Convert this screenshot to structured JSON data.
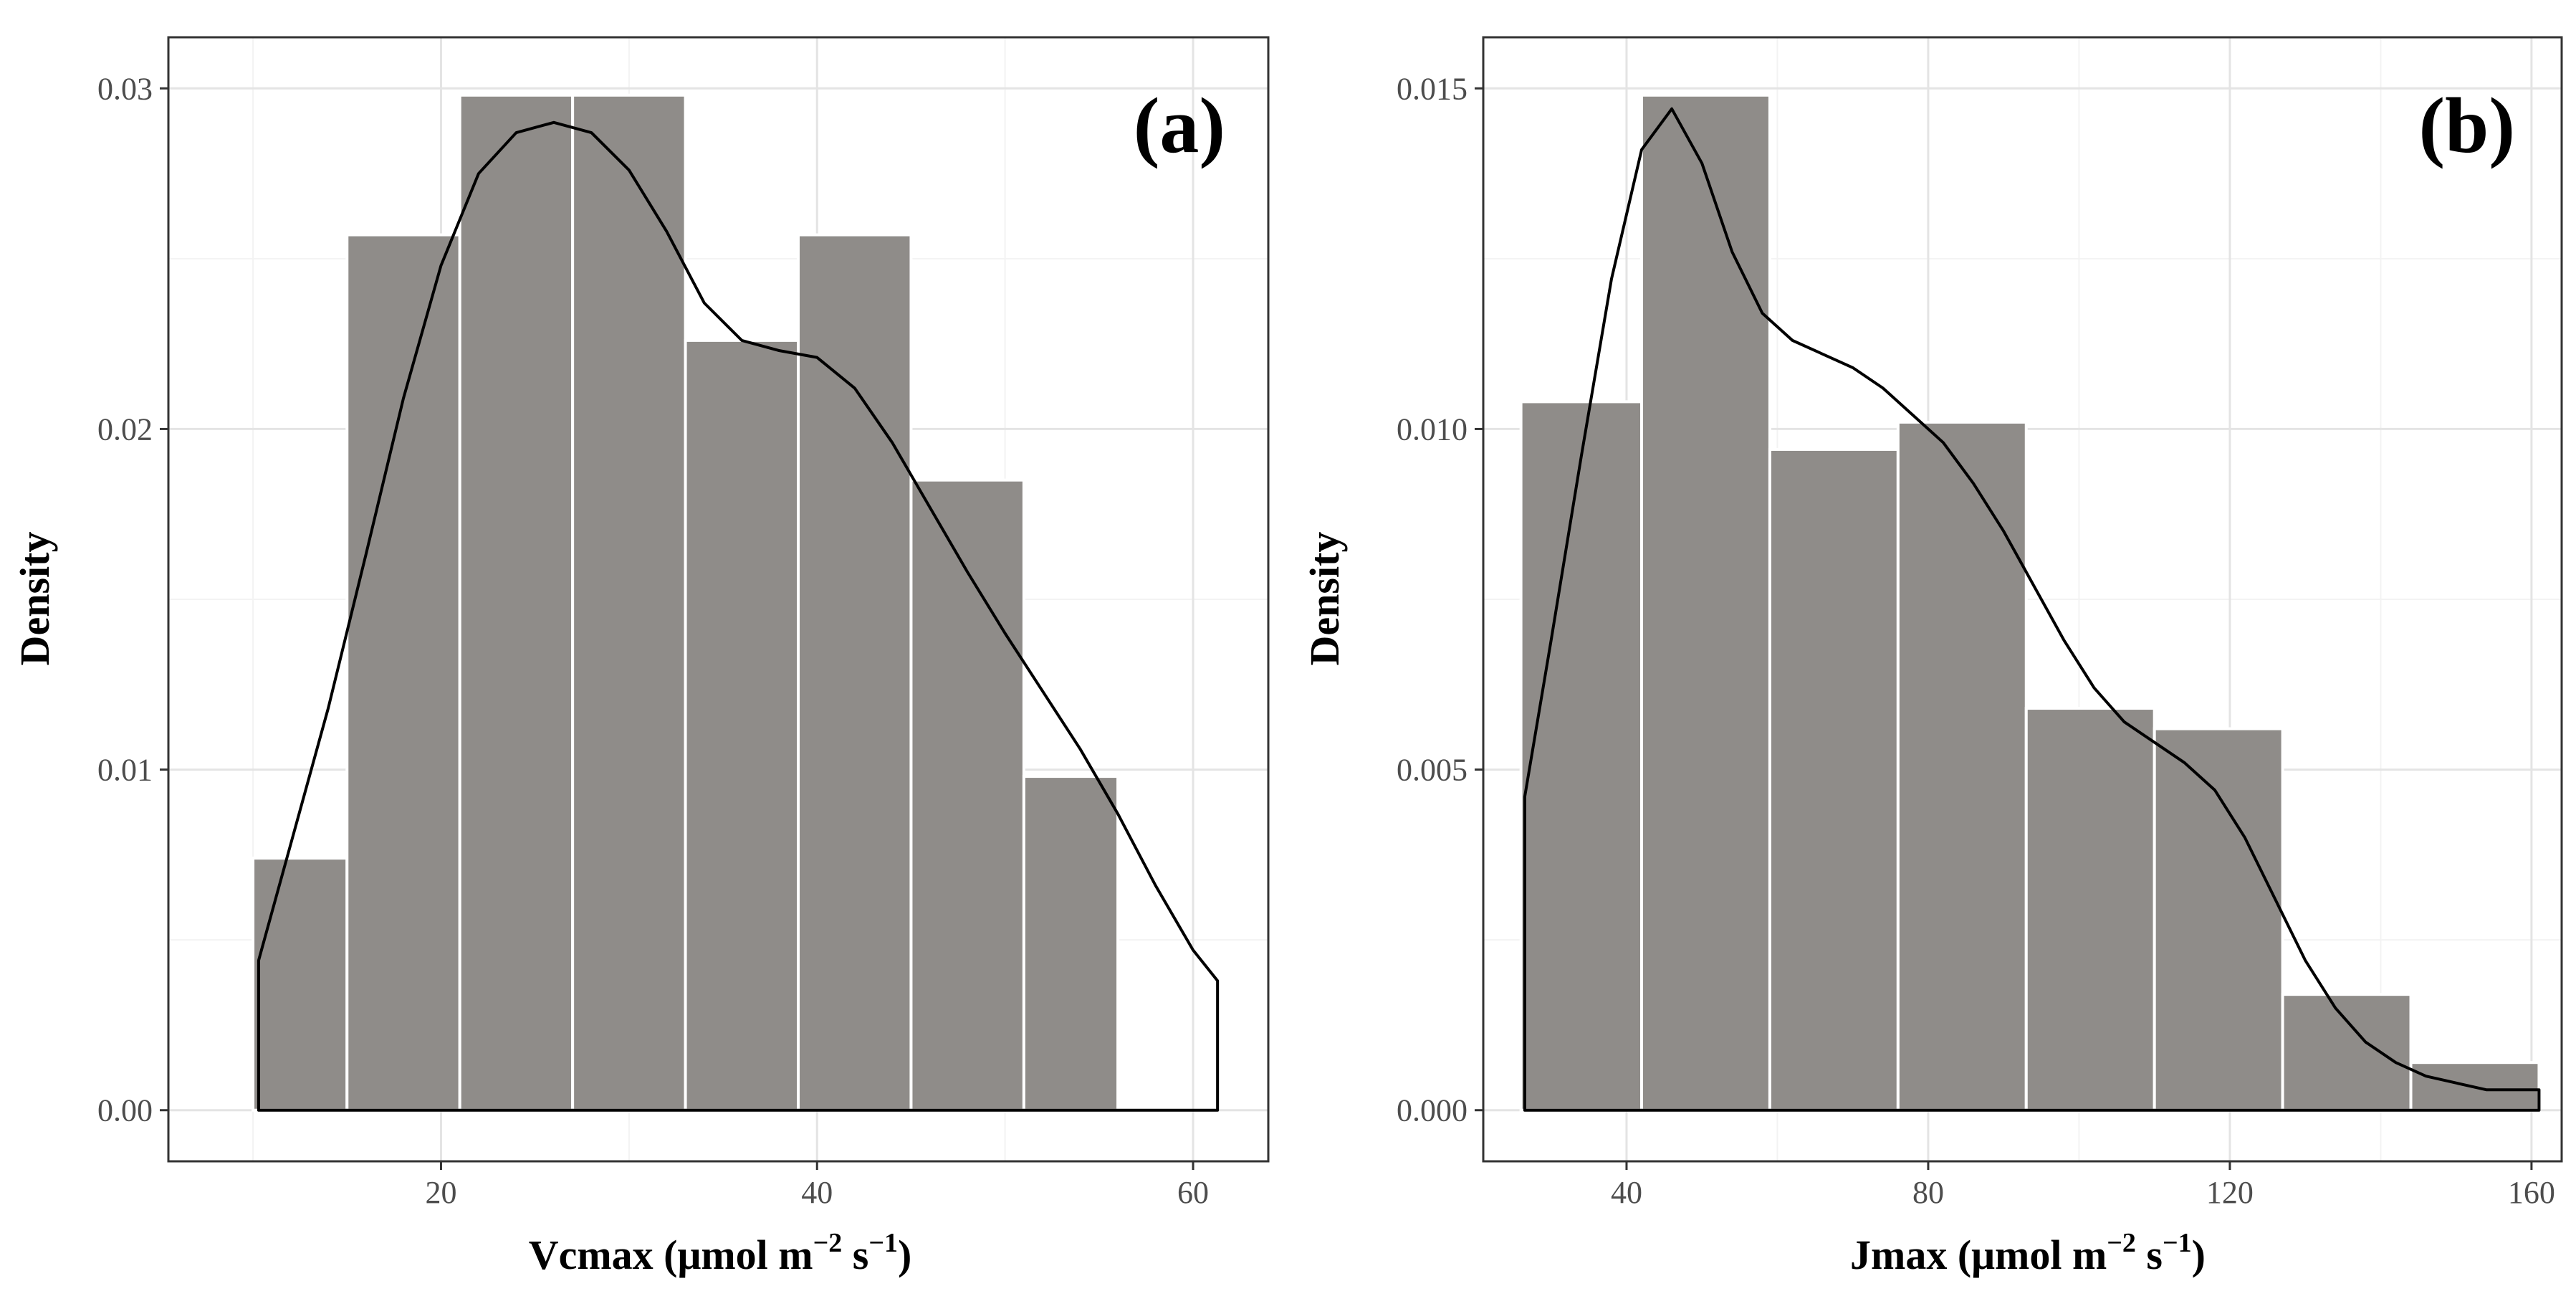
{
  "colors": {
    "bar_fill": "#8f8c89",
    "bar_edge": "#ffffff",
    "density_line": "#000000",
    "grid_major": "#e4e4e4",
    "grid_minor": "#f3f3f3",
    "panel_border": "#333333",
    "tick_text": "#4d4d4d"
  },
  "chart_data": [
    {
      "type": "bar",
      "subtype": "histogram with density curve",
      "panel_label": "(a)",
      "xlabel": "Vcmax (μmol m⁻² s⁻¹)",
      "xlabel_parts": {
        "main": "Vcmax (μmol m",
        "sup1": "−2",
        "mid": " s",
        "sup2": "−1",
        "end": ")"
      },
      "ylabel": "Density",
      "xlim": [
        5.5,
        64
      ],
      "ylim": [
        -0.0015,
        0.0315
      ],
      "x_ticks": [
        20,
        40,
        60
      ],
      "x_tick_labels": [
        "20",
        "40",
        "60"
      ],
      "y_ticks": [
        0.0,
        0.01,
        0.02,
        0.03
      ],
      "y_tick_labels": [
        "0.00",
        "0.01",
        "0.02",
        "0.03"
      ],
      "grid": true,
      "bin_edges": [
        10,
        15,
        21,
        27,
        33,
        39,
        45,
        51,
        56
      ],
      "values": [
        0.0074,
        0.0257,
        0.0298,
        0.0298,
        0.0226,
        0.0257,
        0.0185,
        0.0098
      ],
      "density_curve": {
        "x": [
          10.3,
          12,
          14,
          16,
          18,
          20,
          22,
          24,
          26,
          28,
          30,
          32,
          34,
          36,
          38,
          40,
          42,
          44,
          46,
          48,
          50,
          52,
          54,
          56,
          58,
          60,
          61.3
        ],
        "y": [
          0.0044,
          0.0078,
          0.0118,
          0.0163,
          0.0209,
          0.0248,
          0.0275,
          0.0287,
          0.029,
          0.0287,
          0.0276,
          0.0258,
          0.0237,
          0.0226,
          0.0223,
          0.0221,
          0.0212,
          0.0196,
          0.0177,
          0.0158,
          0.014,
          0.0123,
          0.0106,
          0.0087,
          0.0066,
          0.0047,
          0.0038
        ]
      }
    },
    {
      "type": "bar",
      "subtype": "histogram with density curve",
      "panel_label": "(b)",
      "xlabel": "Jmax (μmol m⁻² s⁻¹)",
      "xlabel_parts": {
        "main": "Jmax (μmol m",
        "sup1": "−2",
        "mid": " s",
        "sup2": "−1",
        "end": ")"
      },
      "ylabel": "Density",
      "xlim": [
        21,
        164
      ],
      "ylim": [
        -0.00075,
        0.01575
      ],
      "x_ticks": [
        40,
        80,
        120,
        160
      ],
      "x_tick_labels": [
        "40",
        "80",
        "120",
        "160"
      ],
      "y_ticks": [
        0.0,
        0.005,
        0.01,
        0.015
      ],
      "y_tick_labels": [
        "0.000",
        "0.005",
        "0.010",
        "0.015"
      ],
      "grid": true,
      "bin_edges": [
        26,
        42,
        59,
        76,
        93,
        110,
        127,
        144,
        161
      ],
      "values": [
        0.0104,
        0.0149,
        0.0097,
        0.0101,
        0.0059,
        0.0056,
        0.0017,
        0.0007
      ],
      "density_curve": {
        "x": [
          26.5,
          30,
          34,
          38,
          42,
          46,
          50,
          54,
          58,
          62,
          66,
          70,
          74,
          78,
          82,
          86,
          90,
          94,
          98,
          102,
          106,
          110,
          114,
          118,
          122,
          126,
          130,
          134,
          138,
          142,
          146,
          150,
          154,
          158,
          161
        ],
        "y": [
          0.0046,
          0.0069,
          0.0096,
          0.0122,
          0.0141,
          0.0147,
          0.0139,
          0.0126,
          0.0117,
          0.0113,
          0.0111,
          0.0109,
          0.0106,
          0.0102,
          0.0098,
          0.0092,
          0.0085,
          0.0077,
          0.0069,
          0.0062,
          0.0057,
          0.0054,
          0.0051,
          0.0047,
          0.004,
          0.0031,
          0.0022,
          0.0015,
          0.001,
          0.0007,
          0.0005,
          0.0004,
          0.0003,
          0.0003,
          0.0003
        ]
      }
    }
  ]
}
